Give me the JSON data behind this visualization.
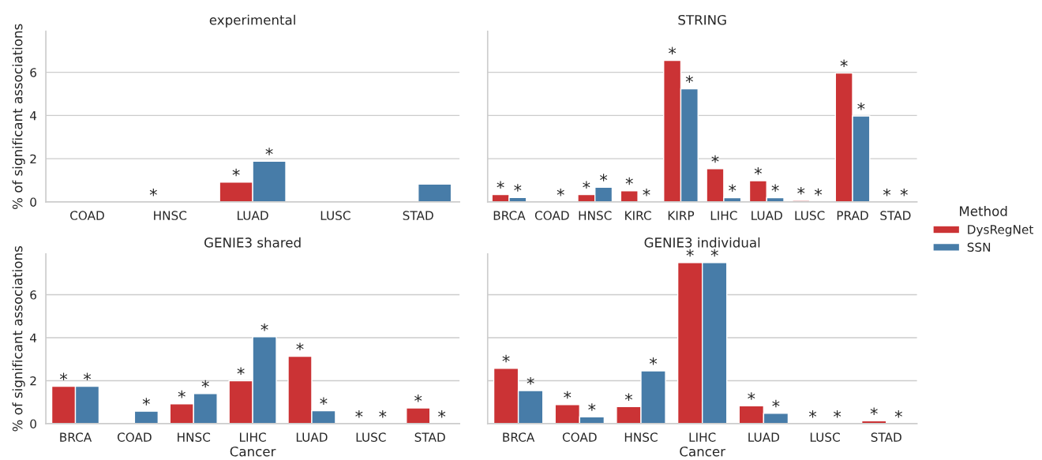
{
  "chart_data": [
    {
      "type": "bar",
      "title": "experimental",
      "ylabel": "% of significant associations",
      "categories": [
        "COAD",
        "HNSC",
        "LUAD",
        "LUSC",
        "STAD"
      ],
      "ylim": [
        0,
        7.9
      ],
      "yticks": [
        0,
        2,
        4,
        6
      ],
      "grid": "y",
      "legend": "right",
      "legend_title": "Method",
      "series": [
        {
          "name": "DysRegNet",
          "color": "#cb3335",
          "values": [
            0,
            0,
            0.92,
            0,
            0
          ],
          "value_labels": [
            null,
            "*",
            "*",
            null,
            null
          ]
        },
        {
          "name": "SSN",
          "color": "#477ca8",
          "values": [
            0,
            0,
            1.89,
            0,
            0.83
          ],
          "value_labels": [
            null,
            null,
            "*",
            null,
            null
          ]
        }
      ]
    },
    {
      "type": "bar",
      "title": "STRING",
      "categories": [
        "BRCA",
        "COAD",
        "HNSC",
        "KIRC",
        "KIRP",
        "LIHC",
        "LUAD",
        "LUSC",
        "PRAD",
        "STAD"
      ],
      "ylim": [
        0,
        7.9
      ],
      "yticks": [
        0,
        2,
        4,
        6
      ],
      "grid": "y",
      "tick_labels": "x",
      "series": [
        {
          "color": "#cb3335",
          "values": [
            0.34,
            0,
            0.34,
            0.52,
            6.55,
            1.54,
            0.98,
            0.07,
            5.97,
            0
          ],
          "value_labels": [
            "*",
            null,
            "*",
            "*",
            "*",
            "*",
            "*",
            "*",
            "*",
            "*"
          ]
        },
        {
          "color": "#477ca8",
          "values": [
            0.21,
            0,
            0.68,
            0,
            5.24,
            0.2,
            0.2,
            0.01,
            3.98,
            0
          ],
          "value_labels": [
            "*",
            "*",
            "*",
            "*",
            "*",
            "*",
            "*",
            "*",
            "*",
            "*"
          ]
        }
      ]
    },
    {
      "type": "bar",
      "title": "GENIE3 shared",
      "xlabel": "Cancer",
      "ylabel": "% of significant associations",
      "categories": [
        "BRCA",
        "COAD",
        "HNSC",
        "LIHC",
        "LUAD",
        "LUSC",
        "STAD"
      ],
      "ylim": [
        0,
        7.9
      ],
      "yticks": [
        0,
        2,
        4,
        6
      ],
      "grid": "y",
      "series": [
        {
          "color": "#cb3335",
          "values": [
            1.74,
            0,
            0.92,
            2.0,
            3.14,
            0,
            0.73
          ],
          "value_labels": [
            "*",
            null,
            "*",
            "*",
            "*",
            "*",
            "*"
          ]
        },
        {
          "color": "#477ca8",
          "values": [
            1.74,
            0.58,
            1.4,
            4.04,
            0.6,
            0,
            0
          ],
          "value_labels": [
            "*",
            "*",
            "*",
            "*",
            "*",
            "*",
            "*"
          ]
        }
      ]
    },
    {
      "type": "bar",
      "title": "GENIE3 individual",
      "xlabel": "Cancer",
      "categories": [
        "BRCA",
        "COAD",
        "HNSC",
        "LIHC",
        "LUAD",
        "LUSC",
        "STAD"
      ],
      "ylim": [
        0,
        7.9
      ],
      "yticks": [
        0,
        2,
        4,
        6
      ],
      "grid": "y",
      "tick_labels": "x",
      "series": [
        {
          "color": "#cb3335",
          "values": [
            2.58,
            0.89,
            0.79,
            7.5,
            0.83,
            0,
            0.13
          ],
          "value_labels": [
            "*",
            "*",
            "*",
            "*",
            "*",
            "*",
            "*"
          ]
        },
        {
          "color": "#477ca8",
          "values": [
            1.54,
            0.32,
            2.46,
            7.5,
            0.48,
            0,
            0
          ],
          "value_labels": [
            "*",
            "*",
            "*",
            "*",
            "*",
            "*",
            "*"
          ]
        }
      ]
    }
  ]
}
